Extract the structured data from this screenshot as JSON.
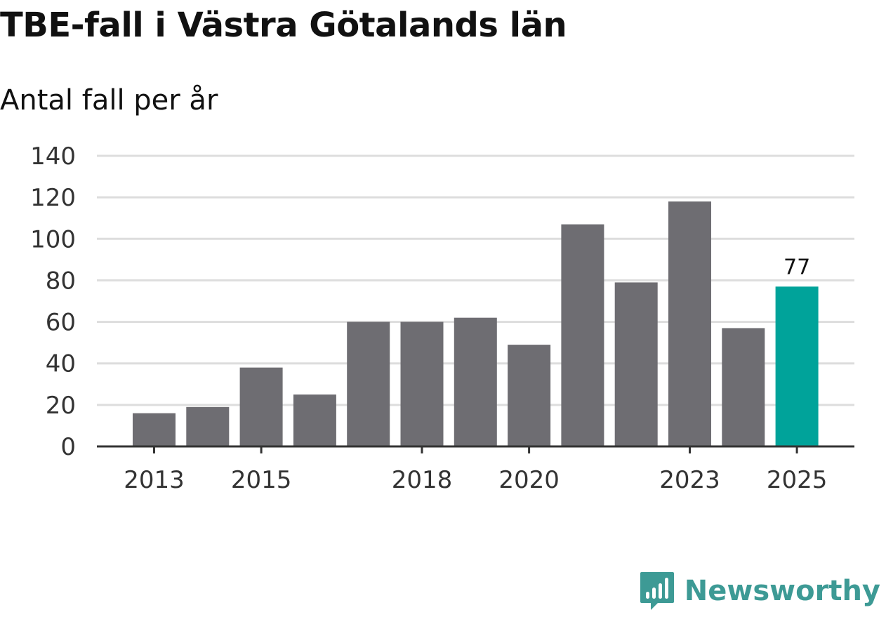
{
  "header": {
    "title": "TBE-fall i Västra Götalands län",
    "subtitle": "Antal fall per år"
  },
  "brand": {
    "name": "Newsworthy",
    "color": "#3d9a95"
  },
  "colors": {
    "bar": "#6e6d72",
    "highlight": "#00a39a",
    "grid": "#dddddd",
    "axis": "#333333",
    "tick_text": "#333333"
  },
  "chart_data": {
    "type": "bar",
    "title": "TBE-fall i Västra Götalands län",
    "subtitle": "Antal fall per år",
    "xlabel": "",
    "ylabel": "",
    "categories": [
      "2013",
      "2014",
      "2015",
      "2016",
      "2017",
      "2018",
      "2019",
      "2020",
      "2021",
      "2022",
      "2023",
      "2024",
      "2025"
    ],
    "values": [
      16,
      19,
      38,
      25,
      60,
      60,
      62,
      49,
      107,
      79,
      118,
      57,
      77
    ],
    "highlight_index": 12,
    "highlight_label": "77",
    "x_tick_labels": [
      "2013",
      "2015",
      "2018",
      "2020",
      "2023",
      "2025"
    ],
    "y_ticks": [
      0,
      20,
      40,
      60,
      80,
      100,
      120,
      140
    ],
    "ylim": [
      0,
      140
    ],
    "grid": true,
    "legend": "none"
  }
}
